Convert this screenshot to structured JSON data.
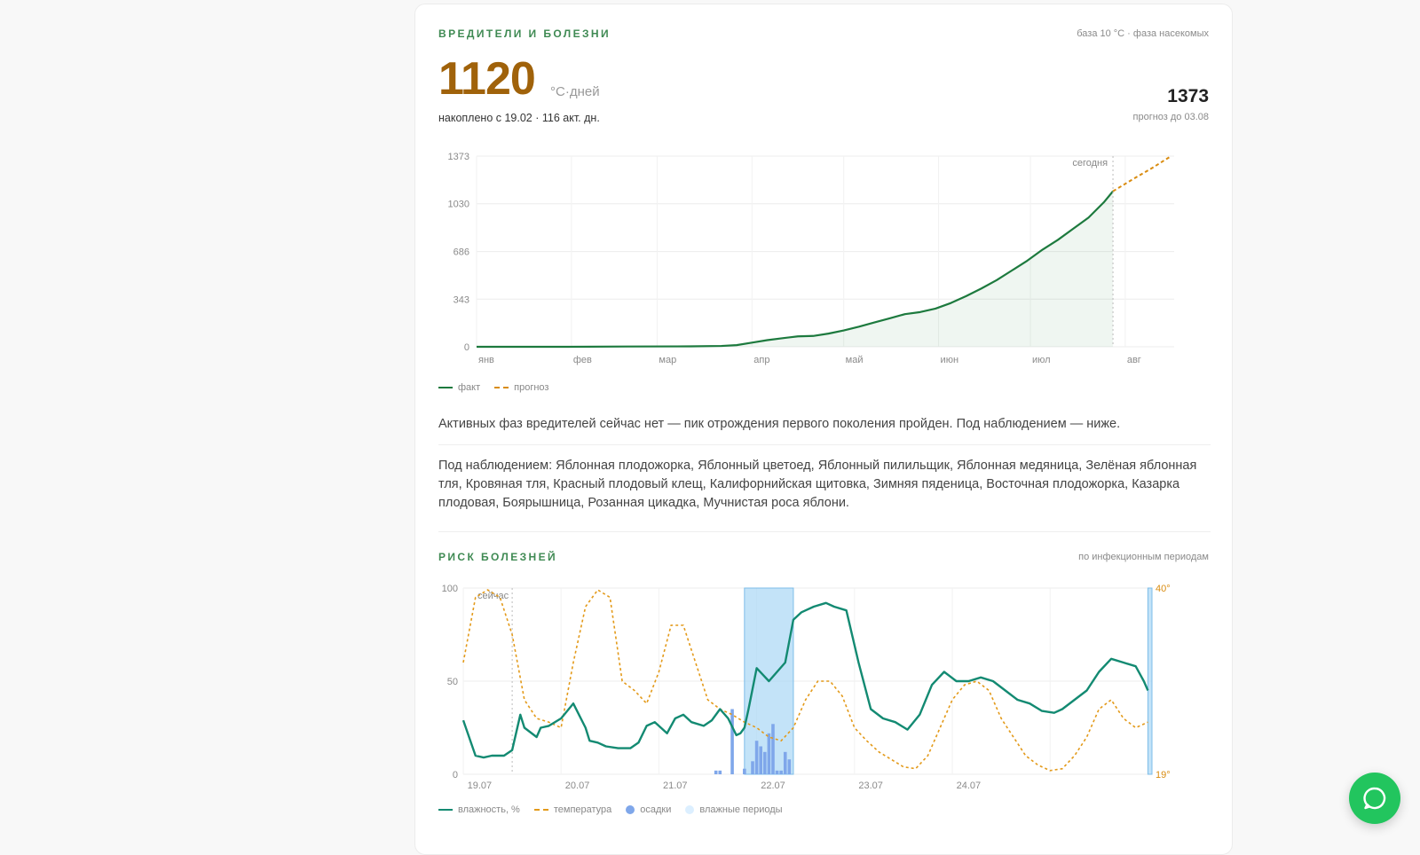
{
  "pests": {
    "title": "ВРЕДИТЕЛИ И БОЛЕЗНИ",
    "note": "база 10 °C · фаза насекомых",
    "value": "1120",
    "unit": "°С·дней",
    "accumulated": "накоплено с 19.02 · 116 акт. дн.",
    "forecast_value": "1373",
    "forecast_label": "прогноз до 03.08",
    "status_text": "Активных фаз вредителей сейчас нет — пик отрождения первого поколения пройден. Под наблюдением — ниже.",
    "watch_text": "Под наблюдением: Яблонная плодожорка, Яблонный цветоед, Яблонный пилильщик, Яблонная медяница, Зелёная яблонная тля, Кровяная тля, Красный плодовый клещ, Калифорнийская щитовка, Зимняя пяденица, Восточная плодожорка, Казарка плодовая, Боярышница, Розанная цикадка, Мучнистая роса яблони."
  },
  "disease": {
    "title": "РИСК БОЛЕЗНЕЙ",
    "note": "по инфекционным периодам"
  },
  "colors": {
    "fact": "#1d7a3e",
    "forecast": "#d98c10",
    "humidity": "#138a72",
    "temperature": "#e39a1a",
    "precip": "#7fa7ea",
    "wet": "#cfe7f7",
    "chat": "#22c55e"
  },
  "chart_data": [
    {
      "type": "area",
      "xlabel": "",
      "ylabel": "",
      "x_ticks": [
        "янв",
        "фев",
        "мар",
        "апр",
        "май",
        "июн",
        "июл",
        "авг"
      ],
      "y_ticks": [
        0,
        343,
        686,
        1030,
        1373
      ],
      "ylim": [
        0,
        1373
      ],
      "marker_label": "сегодня",
      "marker_day": 208,
      "legend_position": "bottom-left",
      "grid": true,
      "series": [
        {
          "name": "факт",
          "x_days": [
            0,
            30,
            49,
            70,
            80,
            85,
            90,
            95,
            100,
            105,
            110,
            115,
            120,
            125,
            130,
            135,
            140,
            145,
            150,
            155,
            160,
            165,
            170,
            175,
            180,
            185,
            190,
            195,
            200,
            205,
            208
          ],
          "values": [
            0,
            0,
            2,
            3,
            6,
            12,
            30,
            48,
            62,
            75,
            78,
            95,
            118,
            145,
            175,
            205,
            235,
            250,
            275,
            315,
            365,
            420,
            480,
            550,
            620,
            700,
            770,
            850,
            930,
            1040,
            1120
          ]
        },
        {
          "name": "прогноз",
          "x_days": [
            208,
            214,
            221,
            227
          ],
          "values": [
            1120,
            1200,
            1290,
            1373
          ]
        }
      ]
    },
    {
      "type": "line",
      "xlabel": "",
      "ylabel": "",
      "x_ticks": [
        "19.07",
        "20.07",
        "21.07",
        "22.07",
        "23.07",
        "24.07"
      ],
      "y_ticks": [
        0,
        50,
        100
      ],
      "ylim": [
        0,
        100
      ],
      "right_axis": [
        "40°",
        "19°"
      ],
      "now_label": "сейчас",
      "now_hour": 12,
      "wet_periods_hours": [
        [
          69,
          81
        ],
        [
          168,
          169
        ]
      ],
      "legend_position": "bottom-left",
      "grid": true,
      "series": [
        {
          "name": "влажность, %",
          "hours": [
            0,
            3,
            5,
            7,
            10,
            12,
            14,
            15,
            18,
            19,
            21,
            24,
            27,
            30,
            31,
            33,
            35,
            38,
            41,
            43,
            45,
            47,
            50,
            52,
            54,
            56,
            59,
            61,
            63,
            65,
            67,
            68,
            69,
            70,
            72,
            75,
            77,
            79,
            81,
            83,
            84,
            86,
            89,
            91,
            94,
            97,
            100,
            103,
            106,
            109,
            112,
            115,
            118,
            121,
            124,
            127,
            130,
            133,
            136,
            139,
            142,
            145,
            147,
            150,
            153,
            156,
            159,
            162,
            165,
            167,
            168
          ],
          "values": [
            29,
            10,
            9,
            10,
            10,
            13,
            32,
            25,
            20,
            25,
            26,
            30,
            38,
            25,
            18,
            17,
            15,
            14,
            14,
            17,
            26,
            28,
            22,
            30,
            32,
            28,
            26,
            29,
            35,
            30,
            21,
            22,
            25,
            35,
            57,
            50,
            55,
            60,
            83,
            87,
            88,
            90,
            92,
            90,
            88,
            60,
            35,
            30,
            28,
            24,
            32,
            48,
            55,
            50,
            50,
            52,
            50,
            45,
            40,
            38,
            34,
            33,
            35,
            40,
            45,
            55,
            62,
            60,
            58,
            50,
            45
          ]
        },
        {
          "name": "температура",
          "hours": [
            0,
            3,
            6,
            9,
            12,
            15,
            18,
            21,
            24,
            27,
            30,
            33,
            36,
            39,
            42,
            45,
            48,
            51,
            54,
            57,
            60,
            63,
            66,
            69,
            72,
            75,
            78,
            81,
            84,
            87,
            90,
            93,
            96,
            99,
            102,
            105,
            108,
            111,
            114,
            117,
            120,
            123,
            126,
            129,
            132,
            135,
            138,
            141,
            144,
            147,
            150,
            153,
            156,
            159,
            162,
            165,
            168
          ],
          "values": [
            60,
            95,
            99,
            95,
            75,
            40,
            30,
            28,
            25,
            60,
            90,
            99,
            95,
            50,
            45,
            38,
            55,
            80,
            80,
            60,
            40,
            35,
            32,
            28,
            25,
            20,
            18,
            25,
            40,
            50,
            50,
            42,
            25,
            18,
            12,
            8,
            4,
            3,
            10,
            25,
            40,
            48,
            50,
            45,
            30,
            20,
            10,
            5,
            2,
            3,
            10,
            20,
            35,
            40,
            30,
            25,
            28
          ]
        },
        {
          "name": "осадки",
          "hours": [
            62,
            63,
            66,
            69,
            71,
            72,
            73,
            74,
            75,
            76,
            77,
            78,
            79,
            80
          ],
          "values": [
            2,
            2,
            35,
            3,
            7,
            18,
            15,
            12,
            22,
            27,
            2,
            2,
            12,
            8
          ]
        },
        {
          "name": "влажные периоды",
          "hours": [],
          "values": []
        }
      ]
    }
  ]
}
